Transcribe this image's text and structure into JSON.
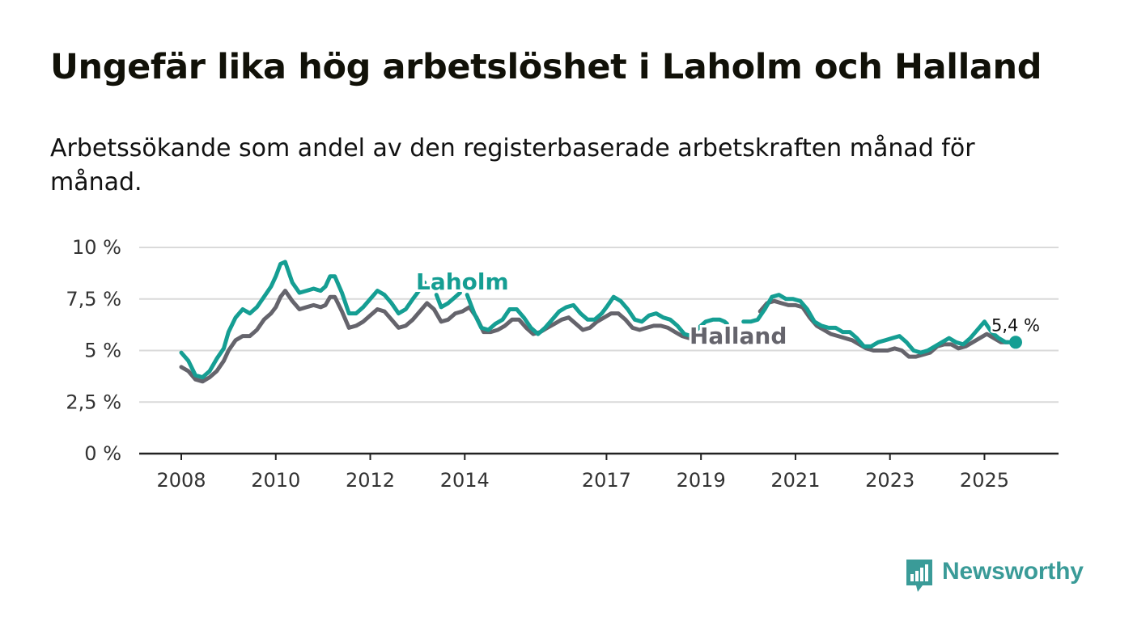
{
  "title": "Ungefär lika hög arbetslöshet i Laholm och Halland",
  "subtitle": "Arbetssökande som andel av den registerbaserade arbetskraften månad för månad.",
  "brand": {
    "name": "Newsworthy",
    "color": "#3a9b98"
  },
  "chart_data": {
    "type": "line",
    "title": "Ungefär lika hög arbetslöshet i Laholm och Halland",
    "xlabel": "",
    "ylabel": "",
    "ylim": [
      0,
      10
    ],
    "xlim": [
      2008,
      2025.7
    ],
    "y_ticks": [
      0,
      2.5,
      5,
      7.5,
      10
    ],
    "y_tick_labels": [
      "0 %",
      "2,5 %",
      "5 %",
      "7,5 %",
      "10 %"
    ],
    "x_ticks": [
      2008,
      2010,
      2012,
      2014,
      2017,
      2019,
      2021,
      2023,
      2025
    ],
    "x_tick_labels": [
      "2008",
      "2010",
      "2012",
      "2014",
      "2017",
      "2019",
      "2021",
      "2023",
      "2025"
    ],
    "grid": true,
    "end_value_label": "5,4 %",
    "series": [
      {
        "name": "Laholm",
        "color": "#159e93",
        "points": [
          [
            2008.0,
            4.9
          ],
          [
            2008.15,
            4.5
          ],
          [
            2008.3,
            3.8
          ],
          [
            2008.45,
            3.7
          ],
          [
            2008.6,
            4.0
          ],
          [
            2008.75,
            4.6
          ],
          [
            2008.9,
            5.1
          ],
          [
            2009.0,
            5.9
          ],
          [
            2009.15,
            6.6
          ],
          [
            2009.3,
            7.0
          ],
          [
            2009.45,
            6.8
          ],
          [
            2009.6,
            7.1
          ],
          [
            2009.75,
            7.6
          ],
          [
            2009.9,
            8.1
          ],
          [
            2010.0,
            8.6
          ],
          [
            2010.1,
            9.2
          ],
          [
            2010.2,
            9.3
          ],
          [
            2010.35,
            8.3
          ],
          [
            2010.5,
            7.8
          ],
          [
            2010.65,
            7.9
          ],
          [
            2010.8,
            8.0
          ],
          [
            2010.95,
            7.9
          ],
          [
            2011.05,
            8.1
          ],
          [
            2011.15,
            8.6
          ],
          [
            2011.25,
            8.6
          ],
          [
            2011.4,
            7.8
          ],
          [
            2011.55,
            6.8
          ],
          [
            2011.7,
            6.8
          ],
          [
            2011.85,
            7.1
          ],
          [
            2012.0,
            7.5
          ],
          [
            2012.15,
            7.9
          ],
          [
            2012.3,
            7.7
          ],
          [
            2012.45,
            7.3
          ],
          [
            2012.6,
            6.8
          ],
          [
            2012.75,
            7.0
          ],
          [
            2012.9,
            7.5
          ],
          [
            2013.0,
            7.8
          ],
          [
            2013.15,
            8.3
          ],
          null,
          [
            2013.4,
            7.7
          ],
          [
            2013.5,
            7.1
          ],
          [
            2013.65,
            7.3
          ],
          [
            2013.8,
            7.6
          ],
          [
            2013.9,
            7.8
          ],
          null,
          [
            2014.05,
            7.7
          ],
          [
            2014.2,
            6.8
          ],
          [
            2014.35,
            6.1
          ],
          [
            2014.5,
            6.0
          ],
          [
            2014.65,
            6.3
          ],
          [
            2014.8,
            6.5
          ],
          [
            2014.95,
            7.0
          ],
          [
            2015.1,
            7.0
          ],
          [
            2015.25,
            6.6
          ],
          [
            2015.4,
            6.1
          ],
          [
            2015.55,
            5.8
          ],
          [
            2015.7,
            6.1
          ],
          [
            2015.85,
            6.5
          ],
          [
            2016.0,
            6.9
          ],
          [
            2016.15,
            7.1
          ],
          [
            2016.3,
            7.2
          ],
          [
            2016.45,
            6.8
          ],
          [
            2016.6,
            6.5
          ],
          [
            2016.75,
            6.5
          ],
          [
            2016.9,
            6.8
          ],
          [
            2017.0,
            7.1
          ],
          [
            2017.15,
            7.6
          ],
          [
            2017.3,
            7.4
          ],
          [
            2017.45,
            7.0
          ],
          [
            2017.6,
            6.5
          ],
          [
            2017.75,
            6.4
          ],
          [
            2017.9,
            6.7
          ],
          [
            2018.05,
            6.8
          ],
          [
            2018.2,
            6.6
          ],
          [
            2018.35,
            6.5
          ],
          [
            2018.5,
            6.2
          ],
          [
            2018.65,
            5.8
          ],
          [
            2018.8,
            5.7
          ],
          [
            2018.95,
            6.1
          ],
          [
            2019.1,
            6.4
          ],
          [
            2019.25,
            6.5
          ],
          [
            2019.4,
            6.5
          ],
          [
            2019.5,
            6.4
          ],
          [
            2019.55,
            6.3
          ],
          null,
          [
            2019.9,
            6.4
          ],
          [
            2020.05,
            6.4
          ],
          [
            2020.2,
            6.5
          ],
          [
            2020.35,
            7.0
          ],
          [
            2020.5,
            7.6
          ],
          [
            2020.65,
            7.7
          ],
          [
            2020.8,
            7.5
          ],
          [
            2020.95,
            7.5
          ],
          [
            2021.1,
            7.4
          ],
          [
            2021.25,
            7.0
          ],
          [
            2021.4,
            6.4
          ],
          [
            2021.55,
            6.2
          ],
          [
            2021.7,
            6.1
          ],
          [
            2021.85,
            6.1
          ],
          [
            2022.0,
            5.9
          ],
          [
            2022.15,
            5.9
          ],
          [
            2022.3,
            5.6
          ],
          [
            2022.45,
            5.2
          ],
          [
            2022.6,
            5.2
          ],
          [
            2022.75,
            5.4
          ],
          [
            2022.9,
            5.5
          ],
          [
            2023.05,
            5.6
          ],
          [
            2023.2,
            5.7
          ],
          [
            2023.35,
            5.4
          ],
          [
            2023.5,
            5.0
          ],
          [
            2023.65,
            4.9
          ],
          [
            2023.8,
            5.0
          ],
          [
            2023.95,
            5.2
          ],
          [
            2024.1,
            5.4
          ],
          [
            2024.25,
            5.6
          ],
          [
            2024.4,
            5.4
          ],
          [
            2024.55,
            5.3
          ],
          [
            2024.7,
            5.6
          ],
          [
            2024.85,
            6.0
          ],
          [
            2025.0,
            6.4
          ],
          [
            2025.15,
            5.9
          ],
          [
            2025.3,
            5.6
          ],
          [
            2025.45,
            5.4
          ],
          [
            2025.55,
            5.4
          ],
          [
            2025.66,
            5.4
          ]
        ]
      },
      {
        "name": "Halland",
        "color": "#65646c",
        "points": [
          [
            2008.0,
            4.2
          ],
          [
            2008.15,
            4.0
          ],
          [
            2008.3,
            3.6
          ],
          [
            2008.45,
            3.5
          ],
          [
            2008.6,
            3.7
          ],
          [
            2008.75,
            4.0
          ],
          [
            2008.9,
            4.5
          ],
          [
            2009.0,
            5.0
          ],
          [
            2009.15,
            5.5
          ],
          [
            2009.3,
            5.7
          ],
          [
            2009.45,
            5.7
          ],
          [
            2009.6,
            6.0
          ],
          [
            2009.75,
            6.5
          ],
          [
            2009.9,
            6.8
          ],
          [
            2010.0,
            7.1
          ],
          [
            2010.1,
            7.6
          ],
          [
            2010.2,
            7.9
          ],
          [
            2010.35,
            7.4
          ],
          [
            2010.5,
            7.0
          ],
          [
            2010.65,
            7.1
          ],
          [
            2010.8,
            7.2
          ],
          [
            2010.95,
            7.1
          ],
          [
            2011.05,
            7.2
          ],
          [
            2011.15,
            7.6
          ],
          [
            2011.25,
            7.6
          ],
          [
            2011.4,
            6.9
          ],
          [
            2011.55,
            6.1
          ],
          [
            2011.7,
            6.2
          ],
          [
            2011.85,
            6.4
          ],
          [
            2012.0,
            6.7
          ],
          [
            2012.15,
            7.0
          ],
          [
            2012.3,
            6.9
          ],
          [
            2012.45,
            6.5
          ],
          [
            2012.6,
            6.1
          ],
          [
            2012.75,
            6.2
          ],
          [
            2012.9,
            6.5
          ],
          [
            2013.05,
            6.9
          ],
          [
            2013.2,
            7.3
          ],
          [
            2013.35,
            7.0
          ],
          [
            2013.5,
            6.4
          ],
          [
            2013.65,
            6.5
          ],
          [
            2013.8,
            6.8
          ],
          [
            2013.95,
            6.9
          ],
          [
            2014.1,
            7.1
          ],
          [
            2014.25,
            6.6
          ],
          [
            2014.4,
            5.9
          ],
          [
            2014.55,
            5.9
          ],
          [
            2014.7,
            6.0
          ],
          [
            2014.85,
            6.2
          ],
          [
            2015.0,
            6.5
          ],
          [
            2015.15,
            6.5
          ],
          [
            2015.3,
            6.1
          ],
          [
            2015.45,
            5.8
          ],
          [
            2015.6,
            5.9
          ],
          [
            2015.75,
            6.1
          ],
          [
            2015.9,
            6.3
          ],
          [
            2016.05,
            6.5
          ],
          [
            2016.2,
            6.6
          ],
          [
            2016.35,
            6.3
          ],
          [
            2016.5,
            6.0
          ],
          [
            2016.65,
            6.1
          ],
          [
            2016.8,
            6.4
          ],
          [
            2016.95,
            6.6
          ],
          [
            2017.1,
            6.8
          ],
          [
            2017.25,
            6.8
          ],
          [
            2017.4,
            6.5
          ],
          [
            2017.55,
            6.1
          ],
          [
            2017.7,
            6.0
          ],
          [
            2017.85,
            6.1
          ],
          [
            2018.0,
            6.2
          ],
          [
            2018.15,
            6.2
          ],
          [
            2018.3,
            6.1
          ],
          [
            2018.45,
            5.9
          ],
          [
            2018.6,
            5.7
          ],
          [
            2018.75,
            5.6
          ],
          [
            2018.9,
            5.8
          ],
          [
            2018.98,
            5.8
          ],
          null,
          [
            2020.25,
            6.9
          ],
          [
            2020.4,
            7.3
          ],
          [
            2020.55,
            7.4
          ],
          [
            2020.7,
            7.3
          ],
          [
            2020.85,
            7.2
          ],
          [
            2021.0,
            7.2
          ],
          [
            2021.15,
            7.1
          ],
          [
            2021.3,
            6.6
          ],
          [
            2021.45,
            6.2
          ],
          [
            2021.6,
            6.0
          ],
          [
            2021.75,
            5.8
          ],
          [
            2021.9,
            5.7
          ],
          [
            2022.05,
            5.6
          ],
          [
            2022.2,
            5.5
          ],
          [
            2022.35,
            5.3
          ],
          [
            2022.5,
            5.1
          ],
          [
            2022.65,
            5.0
          ],
          [
            2022.8,
            5.0
          ],
          [
            2022.95,
            5.0
          ],
          [
            2023.1,
            5.1
          ],
          [
            2023.25,
            5.0
          ],
          [
            2023.4,
            4.7
          ],
          [
            2023.55,
            4.7
          ],
          [
            2023.7,
            4.8
          ],
          [
            2023.85,
            4.9
          ],
          [
            2024.0,
            5.2
          ],
          [
            2024.15,
            5.3
          ],
          [
            2024.3,
            5.3
          ],
          [
            2024.45,
            5.1
          ],
          [
            2024.6,
            5.2
          ],
          [
            2024.75,
            5.4
          ],
          [
            2024.9,
            5.6
          ],
          [
            2025.05,
            5.8
          ],
          [
            2025.2,
            5.6
          ],
          [
            2025.35,
            5.4
          ],
          [
            2025.5,
            5.4
          ]
        ]
      }
    ]
  }
}
